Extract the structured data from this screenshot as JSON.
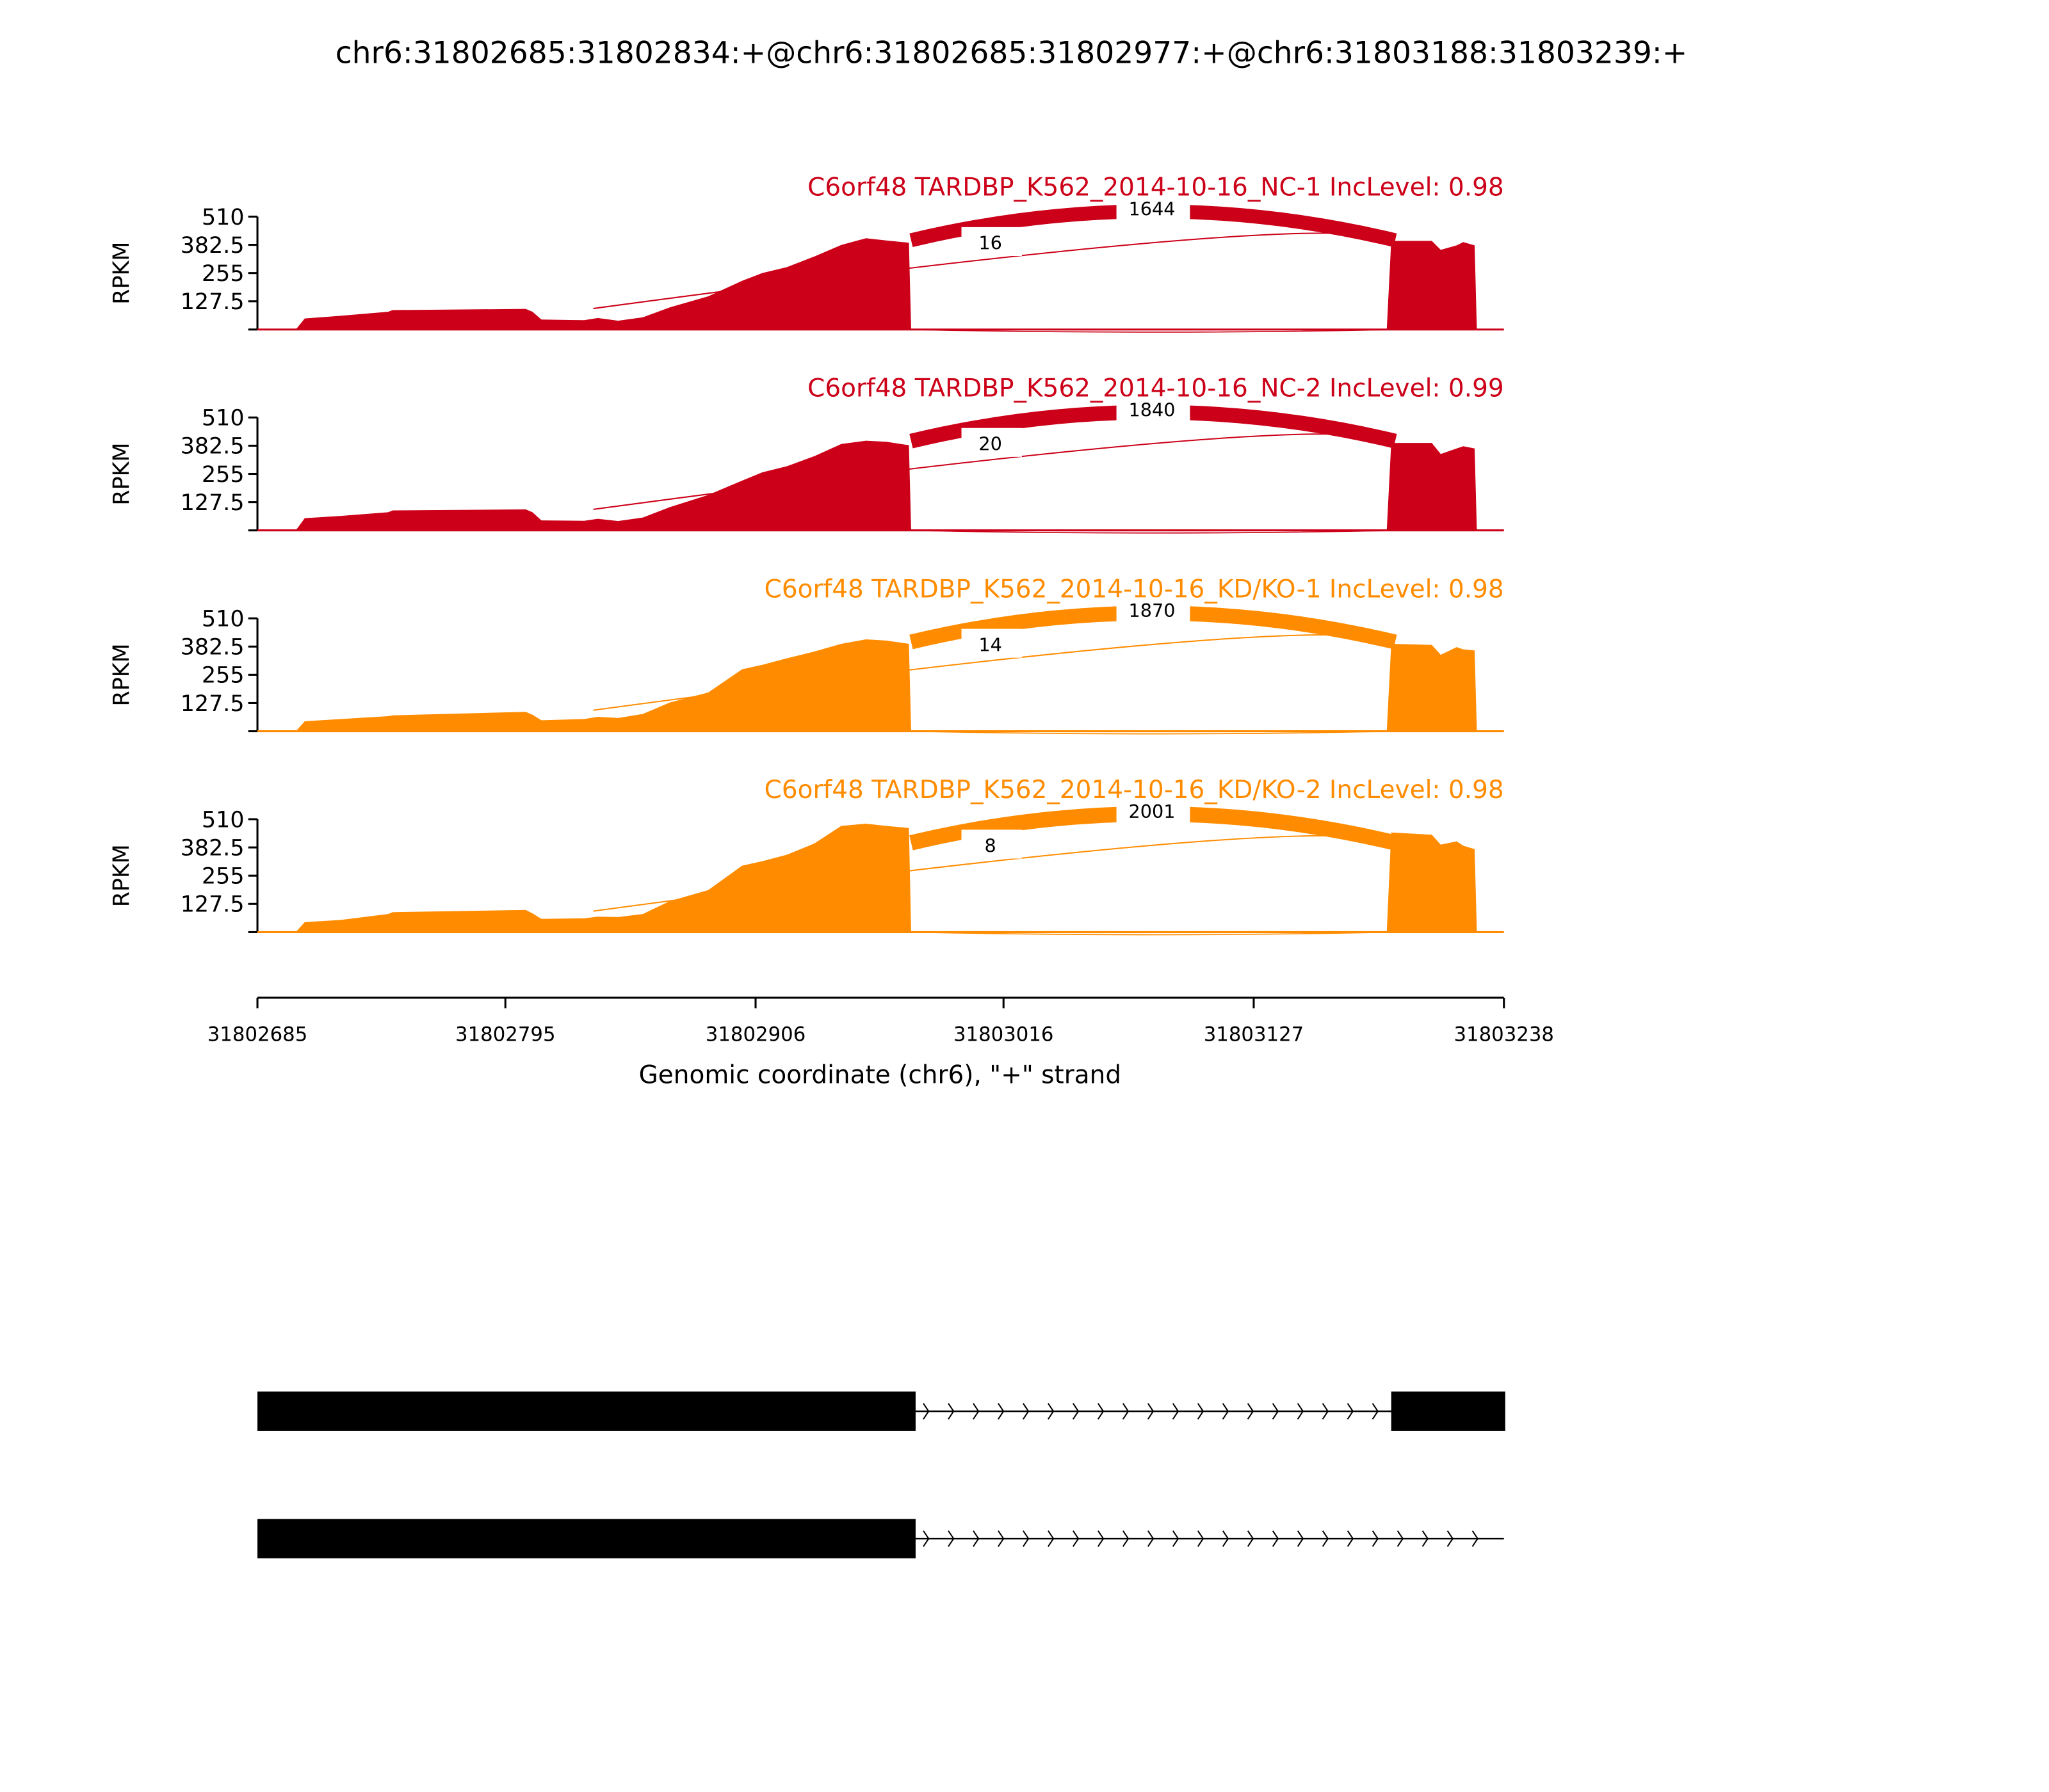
{
  "chart_data": {
    "type": "area",
    "title": "chr6:31802685:31802834:+@chr6:31802685:31802977:+@chr6:31803188:31803239:+",
    "xlabel": "Genomic coordinate (chr6), \"+\" strand",
    "ylabel": "RPKM",
    "xlim": [
      31802685,
      31803238
    ],
    "ylim": [
      0,
      510
    ],
    "x_ticks": [
      "31802685",
      "31802795",
      "31802906",
      "31803016",
      "31803127",
      "31803238"
    ],
    "y_ticks": [
      "510",
      "382.5",
      "255",
      "127.5"
    ],
    "colors": {
      "NC": "#cc0018",
      "KD": "#ff8c00",
      "gene": "#000000"
    },
    "samples": [
      {
        "title": "C6orf48 TARDBP_K562_2014-10-16_NC-1 IncLevel: 0.98",
        "color": "#cc0018",
        "skip_junction": {
          "start": 31802975,
          "end": 31803188,
          "count": "1644"
        },
        "inclusion_junction": {
          "start": 31802834,
          "end": 31803188,
          "count": "16"
        },
        "coverage": [
          [
            31802685,
            0
          ],
          [
            31802702,
            0
          ],
          [
            31802706,
            50
          ],
          [
            31802722,
            62
          ],
          [
            31802743,
            80
          ],
          [
            31802745,
            88
          ],
          [
            31802804,
            93
          ],
          [
            31802807,
            80
          ],
          [
            31802811,
            45
          ],
          [
            31802830,
            42
          ],
          [
            31802836,
            52
          ],
          [
            31802845,
            40
          ],
          [
            31802856,
            55
          ],
          [
            31802868,
            100
          ],
          [
            31802885,
            150
          ],
          [
            31802900,
            220
          ],
          [
            31802909,
            255
          ],
          [
            31802920,
            282
          ],
          [
            31802932,
            330
          ],
          [
            31802944,
            382
          ],
          [
            31802955,
            412
          ],
          [
            31802964,
            402
          ],
          [
            31802974,
            392
          ],
          [
            31802975,
            0
          ],
          [
            31803186,
            0
          ],
          [
            31803188,
            400
          ],
          [
            31803206,
            400
          ],
          [
            31803210,
            360
          ],
          [
            31803217,
            380
          ],
          [
            31803220,
            395
          ],
          [
            31803225,
            380
          ],
          [
            31803226,
            0
          ],
          [
            31803238,
            0
          ]
        ]
      },
      {
        "title": "C6orf48 TARDBP_K562_2014-10-16_NC-2 IncLevel: 0.99",
        "color": "#cc0018",
        "skip_junction": {
          "start": 31802975,
          "end": 31803188,
          "count": "1840"
        },
        "inclusion_junction": {
          "start": 31802834,
          "end": 31803188,
          "count": "20"
        },
        "coverage": [
          [
            31802685,
            0
          ],
          [
            31802702,
            0
          ],
          [
            31802706,
            55
          ],
          [
            31802722,
            65
          ],
          [
            31802743,
            82
          ],
          [
            31802745,
            90
          ],
          [
            31802804,
            95
          ],
          [
            31802807,
            82
          ],
          [
            31802811,
            45
          ],
          [
            31802830,
            43
          ],
          [
            31802836,
            52
          ],
          [
            31802845,
            42
          ],
          [
            31802856,
            58
          ],
          [
            31802868,
            105
          ],
          [
            31802885,
            160
          ],
          [
            31802900,
            225
          ],
          [
            31802909,
            262
          ],
          [
            31802920,
            290
          ],
          [
            31802932,
            335
          ],
          [
            31802944,
            390
          ],
          [
            31802955,
            405
          ],
          [
            31802964,
            400
          ],
          [
            31802974,
            385
          ],
          [
            31802975,
            0
          ],
          [
            31803186,
            0
          ],
          [
            31803188,
            395
          ],
          [
            31803206,
            395
          ],
          [
            31803210,
            345
          ],
          [
            31803217,
            370
          ],
          [
            31803220,
            380
          ],
          [
            31803225,
            370
          ],
          [
            31803226,
            0
          ],
          [
            31803238,
            0
          ]
        ]
      },
      {
        "title": "C6orf48 TARDBP_K562_2014-10-16_KD/KO-1 IncLevel: 0.98",
        "color": "#ff8c00",
        "skip_junction": {
          "start": 31802975,
          "end": 31803188,
          "count": "1870"
        },
        "inclusion_junction": {
          "start": 31802834,
          "end": 31803188,
          "count": "14"
        },
        "coverage": [
          [
            31802685,
            0
          ],
          [
            31802702,
            0
          ],
          [
            31802706,
            45
          ],
          [
            31802722,
            55
          ],
          [
            31802743,
            68
          ],
          [
            31802745,
            72
          ],
          [
            31802804,
            88
          ],
          [
            31802807,
            75
          ],
          [
            31802811,
            50
          ],
          [
            31802830,
            55
          ],
          [
            31802836,
            65
          ],
          [
            31802845,
            60
          ],
          [
            31802856,
            78
          ],
          [
            31802868,
            130
          ],
          [
            31802885,
            175
          ],
          [
            31802900,
            280
          ],
          [
            31802909,
            300
          ],
          [
            31802920,
            330
          ],
          [
            31802932,
            360
          ],
          [
            31802944,
            395
          ],
          [
            31802955,
            415
          ],
          [
            31802964,
            410
          ],
          [
            31802974,
            395
          ],
          [
            31802975,
            0
          ],
          [
            31803186,
            0
          ],
          [
            31803188,
            395
          ],
          [
            31803206,
            390
          ],
          [
            31803210,
            345
          ],
          [
            31803217,
            380
          ],
          [
            31803220,
            370
          ],
          [
            31803225,
            365
          ],
          [
            31803226,
            0
          ],
          [
            31803238,
            0
          ]
        ]
      },
      {
        "title": "C6orf48 TARDBP_K562_2014-10-16_KD/KO-2 IncLevel: 0.98",
        "color": "#ff8c00",
        "skip_junction": {
          "start": 31802975,
          "end": 31803188,
          "count": "2001"
        },
        "inclusion_junction": {
          "start": 31802834,
          "end": 31803188,
          "count": "8"
        },
        "coverage": [
          [
            31802685,
            0
          ],
          [
            31802702,
            0
          ],
          [
            31802706,
            45
          ],
          [
            31802722,
            55
          ],
          [
            31802743,
            82
          ],
          [
            31802745,
            90
          ],
          [
            31802804,
            100
          ],
          [
            31802807,
            85
          ],
          [
            31802811,
            60
          ],
          [
            31802830,
            62
          ],
          [
            31802836,
            70
          ],
          [
            31802845,
            68
          ],
          [
            31802856,
            82
          ],
          [
            31802868,
            140
          ],
          [
            31802885,
            190
          ],
          [
            31802900,
            300
          ],
          [
            31802909,
            320
          ],
          [
            31802920,
            350
          ],
          [
            31802932,
            400
          ],
          [
            31802944,
            480
          ],
          [
            31802955,
            490
          ],
          [
            31802964,
            480
          ],
          [
            31802974,
            470
          ],
          [
            31802975,
            0
          ],
          [
            31803186,
            0
          ],
          [
            31803188,
            450
          ],
          [
            31803206,
            440
          ],
          [
            31803210,
            395
          ],
          [
            31803217,
            410
          ],
          [
            31803220,
            390
          ],
          [
            31803225,
            375
          ],
          [
            31803226,
            0
          ],
          [
            31803238,
            0
          ]
        ]
      }
    ],
    "gene_models": [
      {
        "exons": [
          [
            31802685,
            31802977
          ],
          [
            31803188,
            31803239
          ]
        ],
        "strand": "+"
      },
      {
        "exons": [
          [
            31802685,
            31802977
          ]
        ],
        "intron_end": 31803238,
        "strand": "+"
      }
    ]
  }
}
